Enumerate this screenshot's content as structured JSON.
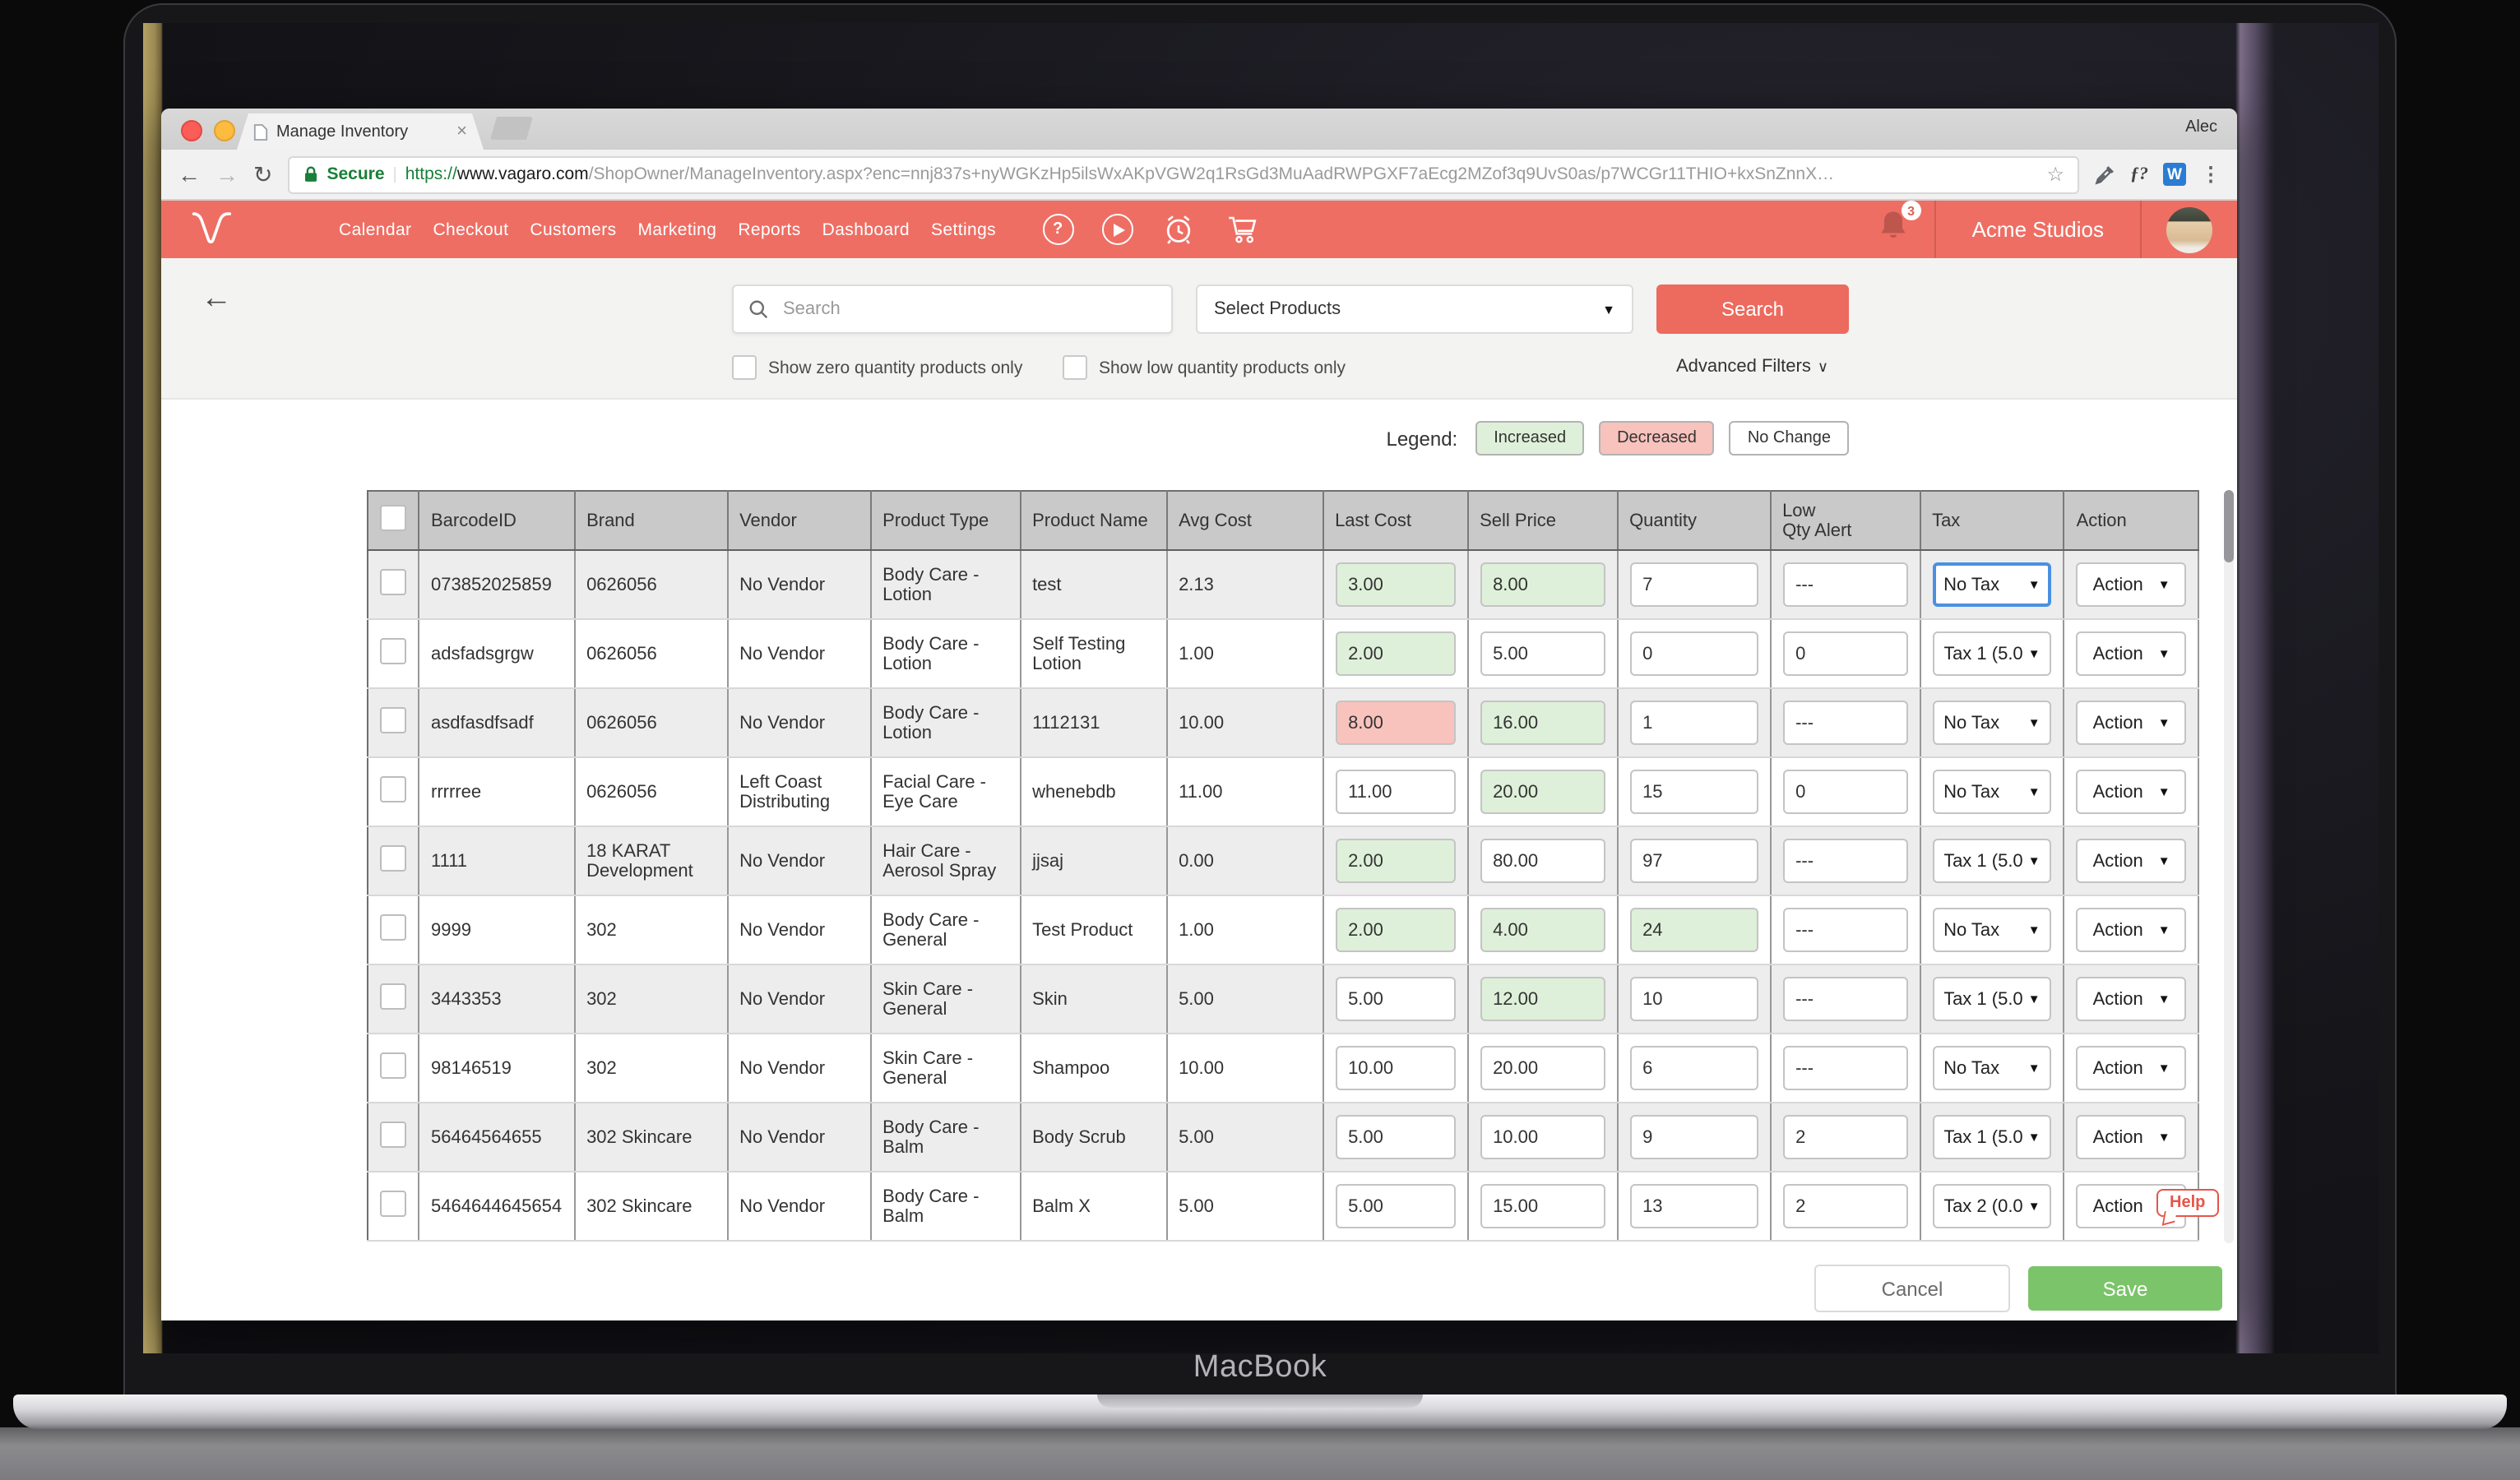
{
  "device": {
    "label": "MacBook"
  },
  "browser": {
    "tab_title": "Manage Inventory",
    "close_glyph": "×",
    "profile_name": "Alec",
    "back_glyph": "←",
    "forward_glyph": "→",
    "reload_glyph": "↻",
    "secure_label": "Secure",
    "url_scheme": "https://",
    "url_domain": "www.vagaro.com",
    "url_path": "/ShopOwner/ManageInventory.aspx?enc=nnj837s+nyWGKzHp5ilsWxAKpVGW2q1RsGd3MuAadRWPGXF7aEcg2MZof3q9UvS0as/p7WCGr11THIO+kxSnZnnX…",
    "star_glyph": "☆",
    "ext_fn_label": "ƒ?",
    "ext_w_label": "W",
    "menu_glyph": "⋮"
  },
  "nav": {
    "items": [
      "Calendar",
      "Checkout",
      "Customers",
      "Marketing",
      "Reports",
      "Dashboard",
      "Settings"
    ],
    "help_glyph": "?",
    "notification_count": "3",
    "business_name": "Acme Studios"
  },
  "filters": {
    "back_glyph": "←",
    "search_placeholder": "Search",
    "product_select_value": "Select Products",
    "search_button": "Search",
    "zero_qty_label": "Show zero quantity products only",
    "low_qty_label": "Show low quantity products only",
    "advanced_label": "Advanced Filters",
    "advanced_chevron": "∨"
  },
  "legend": {
    "label": "Legend:",
    "items": [
      {
        "label": "Increased",
        "type": "increased"
      },
      {
        "label": "Decreased",
        "type": "decreased"
      },
      {
        "label": "No Change",
        "type": "nochange"
      }
    ]
  },
  "table": {
    "headers": [
      "BarcodeID",
      "Brand",
      "Vendor",
      "Product Type",
      "Product Name",
      "Avg Cost",
      "Last Cost",
      "Sell Price",
      "Quantity",
      "Low\nQty Alert",
      "Tax",
      "Action"
    ],
    "action_label": "Action",
    "caret_glyph": "▼",
    "rows": [
      {
        "barcode": "073852025859",
        "brand": "0626056",
        "vendor": "No Vendor",
        "product_type": "Body Care - Lotion",
        "product_name": "test",
        "avg_cost": "2.13",
        "last_cost": {
          "value": "3.00",
          "state": "increased"
        },
        "sell_price": {
          "value": "8.00",
          "state": "increased"
        },
        "quantity": {
          "value": "7",
          "state": "none"
        },
        "low_qty_alert": "---",
        "tax": {
          "label": "No Tax",
          "focused": true
        }
      },
      {
        "barcode": "adsfadsgrgw",
        "brand": "0626056",
        "vendor": "No Vendor",
        "product_type": "Body Care - Lotion",
        "product_name": "Self Testing Lotion",
        "avg_cost": "1.00",
        "last_cost": {
          "value": "2.00",
          "state": "increased"
        },
        "sell_price": {
          "value": "5.00",
          "state": "none"
        },
        "quantity": {
          "value": "0",
          "state": "none"
        },
        "low_qty_alert": "0",
        "tax": {
          "label": "Tax 1 (5.0",
          "focused": false
        }
      },
      {
        "barcode": "asdfasdfsadf",
        "brand": "0626056",
        "vendor": "No Vendor",
        "product_type": "Body Care - Lotion",
        "product_name": "1112131",
        "avg_cost": "10.00",
        "last_cost": {
          "value": "8.00",
          "state": "decreased"
        },
        "sell_price": {
          "value": "16.00",
          "state": "increased"
        },
        "quantity": {
          "value": "1",
          "state": "none"
        },
        "low_qty_alert": "---",
        "tax": {
          "label": "No Tax",
          "focused": false
        }
      },
      {
        "barcode": "rrrrree",
        "brand": "0626056",
        "vendor": "Left Coast Distributing",
        "product_type": "Facial Care - Eye Care",
        "product_name": "whenebdb",
        "avg_cost": "11.00",
        "last_cost": {
          "value": "11.00",
          "state": "none"
        },
        "sell_price": {
          "value": "20.00",
          "state": "increased"
        },
        "quantity": {
          "value": "15",
          "state": "none"
        },
        "low_qty_alert": "0",
        "tax": {
          "label": "No Tax",
          "focused": false
        }
      },
      {
        "barcode": "1111",
        "brand": "18 KARAT Development",
        "vendor": "No Vendor",
        "product_type": "Hair Care - Aerosol Spray",
        "product_name": "jjsaj",
        "avg_cost": "0.00",
        "last_cost": {
          "value": "2.00",
          "state": "increased"
        },
        "sell_price": {
          "value": "80.00",
          "state": "none"
        },
        "quantity": {
          "value": "97",
          "state": "none"
        },
        "low_qty_alert": "---",
        "tax": {
          "label": "Tax 1 (5.0",
          "focused": false
        }
      },
      {
        "barcode": "9999",
        "brand": "302",
        "vendor": "No Vendor",
        "product_type": "Body Care - General",
        "product_name": "Test Product",
        "avg_cost": "1.00",
        "last_cost": {
          "value": "2.00",
          "state": "increased"
        },
        "sell_price": {
          "value": "4.00",
          "state": "increased"
        },
        "quantity": {
          "value": "24",
          "state": "increased"
        },
        "low_qty_alert": "---",
        "tax": {
          "label": "No Tax",
          "focused": false
        }
      },
      {
        "barcode": "3443353",
        "brand": "302",
        "vendor": "No Vendor",
        "product_type": "Skin Care - General",
        "product_name": "Skin",
        "avg_cost": "5.00",
        "last_cost": {
          "value": "5.00",
          "state": "none"
        },
        "sell_price": {
          "value": "12.00",
          "state": "increased"
        },
        "quantity": {
          "value": "10",
          "state": "none"
        },
        "low_qty_alert": "---",
        "tax": {
          "label": "Tax 1 (5.0",
          "focused": false
        }
      },
      {
        "barcode": "98146519",
        "brand": "302",
        "vendor": "No Vendor",
        "product_type": "Skin Care - General",
        "product_name": "Shampoo",
        "avg_cost": "10.00",
        "last_cost": {
          "value": "10.00",
          "state": "none"
        },
        "sell_price": {
          "value": "20.00",
          "state": "none"
        },
        "quantity": {
          "value": "6",
          "state": "none"
        },
        "low_qty_alert": "---",
        "tax": {
          "label": "No Tax",
          "focused": false
        }
      },
      {
        "barcode": "56464564655",
        "brand": "302 Skincare",
        "vendor": "No Vendor",
        "product_type": "Body Care - Balm",
        "product_name": "Body Scrub",
        "avg_cost": "5.00",
        "last_cost": {
          "value": "5.00",
          "state": "none"
        },
        "sell_price": {
          "value": "10.00",
          "state": "none"
        },
        "quantity": {
          "value": "9",
          "state": "none"
        },
        "low_qty_alert": "2",
        "tax": {
          "label": "Tax 1 (5.0",
          "focused": false
        }
      },
      {
        "barcode": "5464644645654",
        "brand": "302 Skincare",
        "vendor": "No Vendor",
        "product_type": "Body Care - Balm",
        "product_name": "Balm X",
        "avg_cost": "5.00",
        "last_cost": {
          "value": "5.00",
          "state": "none"
        },
        "sell_price": {
          "value": "15.00",
          "state": "none"
        },
        "quantity": {
          "value": "13",
          "state": "none"
        },
        "low_qty_alert": "2",
        "tax": {
          "label": "Tax 2 (0.0",
          "focused": false
        }
      }
    ]
  },
  "footer": {
    "cancel_label": "Cancel",
    "save_label": "Save"
  },
  "help_label": "Help",
  "colors": {
    "brand_red": "#ee6e64",
    "save_green": "#7cc46a",
    "increased_bg": "#def0d9",
    "decreased_bg": "#f9c3bd",
    "focus_blue": "#4a90e2",
    "secure_green": "#188038"
  }
}
